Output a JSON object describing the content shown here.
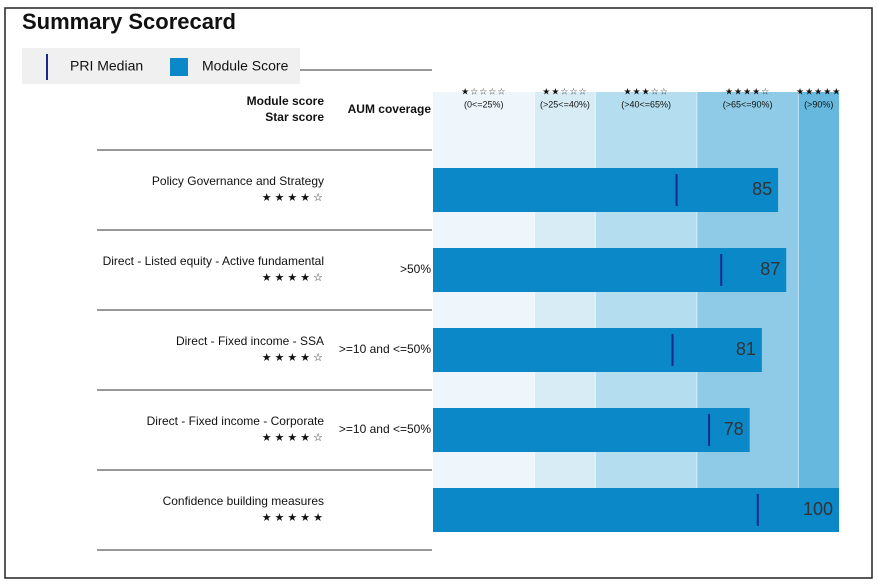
{
  "chart_data": {
    "type": "bar",
    "orientation": "horizontal",
    "title": "Summary Scorecard",
    "column_headers": {
      "module_score": "Module score",
      "star_score": "Star score",
      "aum": "AUM coverage"
    },
    "categories": [
      "Policy Governance and Strategy",
      "Direct - Listed equity - Active fundamental",
      "Direct - Fixed income - SSA",
      "Direct - Fixed income - Corporate",
      "Confidence building measures"
    ],
    "star_scores": [
      "★★★★☆",
      "★★★★☆",
      "★★★★☆",
      "★★★★☆",
      "★★★★★"
    ],
    "aum_coverage": [
      null,
      ">50%",
      ">=10 and <=50%",
      ">=10 and <=50%",
      null
    ],
    "series": [
      {
        "name": "Module Score",
        "color": "#0a88c8",
        "values": [
          85,
          87,
          81,
          78,
          100
        ]
      },
      {
        "name": "PRI Median",
        "color": "#1a2a8c",
        "values": [
          60,
          71,
          59,
          68,
          80
        ]
      }
    ],
    "bands": [
      {
        "stars": "★☆☆☆☆",
        "label": "(0<=25%)",
        "from": 0,
        "to": 25,
        "color": "#eef6fb"
      },
      {
        "stars": "★★☆☆☆",
        "label": "(>25<=40%)",
        "from": 25,
        "to": 40,
        "color": "#d8ecf6"
      },
      {
        "stars": "★★★☆☆",
        "label": "(>40<=65%)",
        "from": 40,
        "to": 65,
        "color": "#b4def0"
      },
      {
        "stars": "★★★★☆",
        "label": "(>65<=90%)",
        "from": 65,
        "to": 90,
        "color": "#8fcbe6"
      },
      {
        "stars": "★★★★★",
        "label": "(>90%)",
        "from": 90,
        "to": 100,
        "color": "#66b8df"
      }
    ],
    "xlim": [
      0,
      100
    ]
  }
}
